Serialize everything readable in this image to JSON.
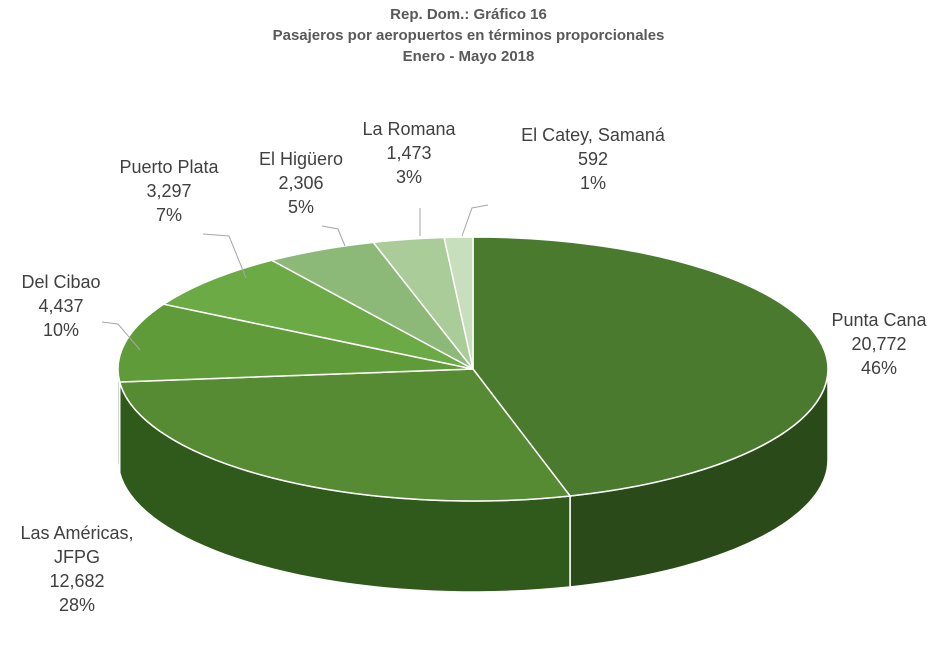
{
  "chart_data": {
    "type": "pie",
    "title_lines": [
      "Rep. Dom.: Gráfico 16",
      "Pasajeros por aeropuertos en términos proporcionales",
      "Enero - Mayo 2018"
    ],
    "categories": [
      "Punta Cana",
      "Las Américas, JFPG",
      "Del Cibao",
      "Puerto Plata",
      "El Higüero",
      "La Romana",
      "El Catey, Samaná"
    ],
    "values": [
      20772,
      12682,
      4437,
      3297,
      2306,
      1473,
      592
    ],
    "value_labels": [
      "20,772",
      "12,682",
      "4,437",
      "3,297",
      "2,306",
      "1,473",
      "592"
    ],
    "percent_labels": [
      "46%",
      "28%",
      "10%",
      "7%",
      "5%",
      "3%",
      "1%"
    ],
    "label_name_lines": [
      [
        "Punta Cana"
      ],
      [
        "Las Américas,",
        "JFPG"
      ],
      [
        "Del Cibao"
      ],
      [
        "Puerto Plata"
      ],
      [
        "El Higüero"
      ],
      [
        "La Romana"
      ],
      [
        "El Catey, Samaná"
      ]
    ],
    "colors": [
      "#4A7A2E",
      "#568A33",
      "#5F9C39",
      "#6BAA45",
      "#8DB978",
      "#A9CC98",
      "#C8DFBE"
    ],
    "side_colors": [
      "#2B4A19",
      "#2F5A1C",
      "#3A6021",
      "#436A27",
      "#587A47",
      "#6E8863",
      "#8AA27F"
    ],
    "style": "3d-pie",
    "legend": "none"
  }
}
